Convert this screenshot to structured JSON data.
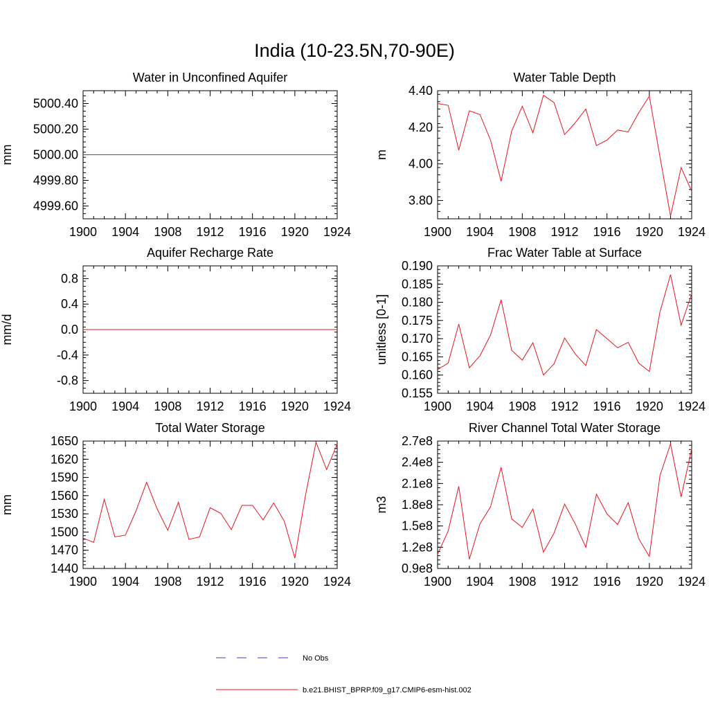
{
  "title": "India (10-23.5N,70-90E)",
  "colors": {
    "model": "#e8141c",
    "obs": "#3a3ad0",
    "axis": "#000000"
  },
  "legend": [
    {
      "label": "No Obs",
      "style": "dashed",
      "color": "#3a3ad0"
    },
    {
      "label": "b.e21.BHIST_BPRP.f09_g17.CMIP6-esm-hist.002",
      "style": "solid",
      "color": "#e8141c"
    }
  ],
  "chart_data": [
    {
      "type": "line",
      "title": "Water in Unconfined Aquifer",
      "ylabel": "mm",
      "xlim": [
        1900,
        1924
      ],
      "ylim": [
        4999.5,
        5000.5
      ],
      "xticks": [
        1900,
        1904,
        1908,
        1912,
        1916,
        1920,
        1924
      ],
      "yticks": [
        4999.6,
        4999.8,
        5000.0,
        5000.2,
        5000.4
      ],
      "ytick_labels": [
        "4999.60",
        "4999.80",
        "5000.00",
        "5000.20",
        "5000.40"
      ],
      "x": [
        1900,
        1901,
        1902,
        1903,
        1904,
        1905,
        1906,
        1907,
        1908,
        1909,
        1910,
        1911,
        1912,
        1913,
        1914,
        1915,
        1916,
        1917,
        1918,
        1919,
        1920,
        1921,
        1922,
        1923,
        1924
      ],
      "series": [
        {
          "values": [
            5000,
            5000,
            5000,
            5000,
            5000,
            5000,
            5000,
            5000,
            5000,
            5000,
            5000,
            5000,
            5000,
            5000,
            5000,
            5000,
            5000,
            5000,
            5000,
            5000,
            5000,
            5000,
            5000,
            5000,
            5000
          ]
        }
      ]
    },
    {
      "type": "line",
      "title": "Water Table Depth",
      "ylabel": "m",
      "xlim": [
        1900,
        1924
      ],
      "ylim": [
        3.7,
        4.4
      ],
      "xticks": [
        1900,
        1904,
        1908,
        1912,
        1916,
        1920,
        1924
      ],
      "yticks": [
        3.8,
        4.0,
        4.2,
        4.4
      ],
      "ytick_labels": [
        "3.80",
        "4.00",
        "4.20",
        "4.40"
      ],
      "x": [
        1900,
        1901,
        1902,
        1903,
        1904,
        1905,
        1906,
        1907,
        1908,
        1909,
        1910,
        1911,
        1912,
        1913,
        1914,
        1915,
        1916,
        1917,
        1918,
        1919,
        1920,
        1921,
        1922,
        1923,
        1924
      ],
      "series": [
        {
          "values": [
            4.33,
            4.32,
            4.075,
            4.29,
            4.27,
            4.13,
            3.905,
            4.18,
            4.315,
            4.17,
            4.375,
            4.335,
            4.16,
            4.225,
            4.3,
            4.1,
            4.13,
            4.185,
            4.175,
            4.28,
            4.37,
            4.04,
            3.715,
            3.98,
            3.85
          ]
        }
      ]
    },
    {
      "type": "line",
      "title": "Aquifer Recharge Rate",
      "ylabel": "mm/d",
      "xlim": [
        1900,
        1924
      ],
      "ylim": [
        -1.0,
        1.0
      ],
      "xticks": [
        1900,
        1904,
        1908,
        1912,
        1916,
        1920,
        1924
      ],
      "yticks": [
        -0.8,
        -0.4,
        0.0,
        0.4,
        0.8
      ],
      "ytick_labels": [
        "-0.8",
        "-0.4",
        "0.0",
        "0.4",
        "0.8"
      ],
      "x": [
        1900,
        1901,
        1902,
        1903,
        1904,
        1905,
        1906,
        1907,
        1908,
        1909,
        1910,
        1911,
        1912,
        1913,
        1914,
        1915,
        1916,
        1917,
        1918,
        1919,
        1920,
        1921,
        1922,
        1923,
        1924
      ],
      "series": [
        {
          "values": [
            0,
            0,
            0,
            0,
            0,
            0,
            0,
            0,
            0,
            0,
            0,
            0,
            0,
            0,
            0,
            0,
            0,
            0,
            0,
            0,
            0,
            0,
            0,
            0,
            0
          ]
        }
      ]
    },
    {
      "type": "line",
      "title": "Frac Water Table at Surface",
      "ylabel": "unitless [0-1]",
      "xlim": [
        1900,
        1924
      ],
      "ylim": [
        0.155,
        0.19
      ],
      "xticks": [
        1900,
        1904,
        1908,
        1912,
        1916,
        1920,
        1924
      ],
      "yticks": [
        0.155,
        0.16,
        0.165,
        0.17,
        0.175,
        0.18,
        0.185,
        0.19
      ],
      "ytick_labels": [
        "0.155",
        "0.160",
        "0.165",
        "0.170",
        "0.175",
        "0.180",
        "0.185",
        "0.190"
      ],
      "x": [
        1900,
        1901,
        1902,
        1903,
        1904,
        1905,
        1906,
        1907,
        1908,
        1909,
        1910,
        1911,
        1912,
        1913,
        1914,
        1915,
        1916,
        1917,
        1918,
        1919,
        1920,
        1921,
        1922,
        1923,
        1924
      ],
      "series": [
        {
          "values": [
            0.1615,
            0.1633,
            0.174,
            0.162,
            0.1653,
            0.171,
            0.1807,
            0.1668,
            0.1641,
            0.1689,
            0.16,
            0.1631,
            0.1702,
            0.1658,
            0.1626,
            0.1725,
            0.17,
            0.1675,
            0.169,
            0.1633,
            0.161,
            0.1773,
            0.1876,
            0.1737,
            0.1823
          ]
        }
      ]
    },
    {
      "type": "line",
      "title": "Total Water Storage",
      "ylabel": "mm",
      "xlim": [
        1900,
        1924
      ],
      "ylim": [
        1440,
        1650
      ],
      "xticks": [
        1900,
        1904,
        1908,
        1912,
        1916,
        1920,
        1924
      ],
      "yticks": [
        1440,
        1470,
        1500,
        1530,
        1560,
        1590,
        1620,
        1650
      ],
      "ytick_labels": [
        "1440",
        "1470",
        "1500",
        "1530",
        "1560",
        "1590",
        "1620",
        "1650"
      ],
      "x": [
        1900,
        1901,
        1902,
        1903,
        1904,
        1905,
        1906,
        1907,
        1908,
        1909,
        1910,
        1911,
        1912,
        1913,
        1914,
        1915,
        1916,
        1917,
        1918,
        1919,
        1920,
        1921,
        1922,
        1923,
        1924
      ],
      "series": [
        {
          "values": [
            1490,
            1483,
            1554,
            1492,
            1495,
            1535,
            1582,
            1538,
            1503,
            1549,
            1488,
            1492,
            1540,
            1531,
            1504,
            1544,
            1544,
            1520,
            1548,
            1518,
            1457,
            1560,
            1648,
            1603,
            1645
          ]
        }
      ]
    },
    {
      "type": "line",
      "title": "River Channel Total Water Storage",
      "ylabel": "m3",
      "xlim": [
        1900,
        1924
      ],
      "ylim": [
        90000000.0,
        270000000.0
      ],
      "xticks": [
        1900,
        1904,
        1908,
        1912,
        1916,
        1920,
        1924
      ],
      "yticks": [
        90000000.0,
        120000000.0,
        150000000.0,
        180000000.0,
        210000000.0,
        240000000.0,
        270000000.0
      ],
      "ytick_labels": [
        "0.9e8",
        "1.2e8",
        "1.5e8",
        "1.8e8",
        "2.1e8",
        "2.4e8",
        "2.7e8"
      ],
      "x": [
        1900,
        1901,
        1902,
        1903,
        1904,
        1905,
        1906,
        1907,
        1908,
        1909,
        1910,
        1911,
        1912,
        1913,
        1914,
        1915,
        1916,
        1917,
        1918,
        1919,
        1920,
        1921,
        1922,
        1923,
        1924
      ],
      "series": [
        {
          "values": [
            110000000.0,
            143000000.0,
            206000000.0,
            103000000.0,
            153000000.0,
            177000000.0,
            233000000.0,
            160000000.0,
            148000000.0,
            174000000.0,
            113000000.0,
            140000000.0,
            181000000.0,
            153000000.0,
            120000000.0,
            195000000.0,
            167000000.0,
            152000000.0,
            183000000.0,
            132000000.0,
            107000000.0,
            221000000.0,
            266000000.0,
            191000000.0,
            259000000.0
          ]
        }
      ]
    }
  ]
}
